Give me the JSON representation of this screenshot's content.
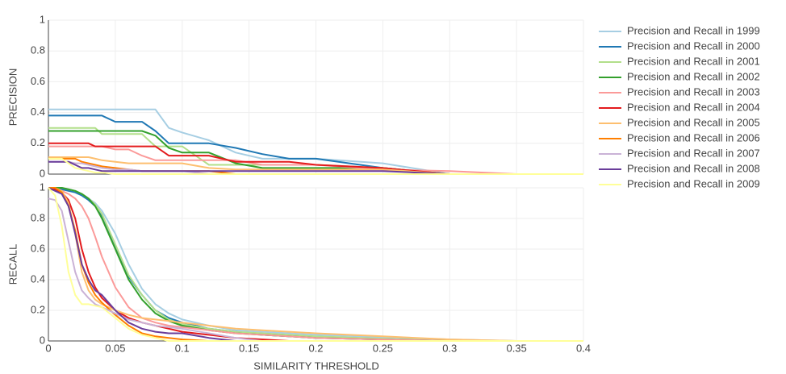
{
  "chart_data": {
    "type": "line",
    "xlabel": "SIMILARITY THRESHOLD",
    "xlim": [
      0,
      0.4
    ],
    "xticks": [
      0,
      0.05,
      0.1,
      0.15,
      0.2,
      0.25,
      0.3,
      0.35,
      0.4
    ],
    "grid": true,
    "legend": "right",
    "panels": [
      {
        "ylabel": "PRECISION",
        "ylim": [
          0,
          1
        ],
        "yticks": [
          0,
          0.2,
          0.4,
          0.6,
          0.8,
          1
        ]
      },
      {
        "ylabel": "RECALL",
        "ylim": [
          0,
          1
        ],
        "yticks": [
          0,
          0.2,
          0.4,
          0.6,
          0.8,
          1
        ]
      }
    ],
    "x": [
      0,
      0.005,
      0.01,
      0.015,
      0.02,
      0.025,
      0.03,
      0.035,
      0.04,
      0.05,
      0.06,
      0.07,
      0.08,
      0.09,
      0.1,
      0.12,
      0.14,
      0.16,
      0.18,
      0.2,
      0.25,
      0.3,
      0.35,
      0.4
    ],
    "series": [
      {
        "name": "Precision and Recall in 1999",
        "color": "#a6cee3",
        "values": [
          [
            0.42,
            0.42,
            0.42,
            0.42,
            0.42,
            0.42,
            0.42,
            0.42,
            0.42,
            0.42,
            0.42,
            0.42,
            0.42,
            0.3,
            0.27,
            0.22,
            0.14,
            0.1,
            0.1,
            0.1,
            0.07,
            0,
            0,
            0
          ],
          [
            1,
            1,
            1,
            0.99,
            0.98,
            0.96,
            0.93,
            0.9,
            0.85,
            0.7,
            0.5,
            0.34,
            0.24,
            0.18,
            0.14,
            0.1,
            0.07,
            0.06,
            0.05,
            0.04,
            0.025,
            0.01,
            0,
            0
          ]
        ]
      },
      {
        "name": "Precision and Recall in 2000",
        "color": "#1f78b4",
        "values": [
          [
            0.38,
            0.38,
            0.38,
            0.38,
            0.38,
            0.38,
            0.38,
            0.38,
            0.38,
            0.34,
            0.34,
            0.34,
            0.28,
            0.2,
            0.2,
            0.2,
            0.17,
            0.13,
            0.1,
            0.1,
            0.04,
            0,
            0,
            0
          ],
          [
            1,
            1,
            0.99,
            0.98,
            0.97,
            0.95,
            0.92,
            0.88,
            0.82,
            0.62,
            0.42,
            0.3,
            0.2,
            0.15,
            0.12,
            0.08,
            0.06,
            0.04,
            0.03,
            0.02,
            0.01,
            0,
            0,
            0
          ]
        ]
      },
      {
        "name": "Precision and Recall in 2001",
        "color": "#b2df8a",
        "values": [
          [
            0.3,
            0.3,
            0.3,
            0.3,
            0.3,
            0.3,
            0.3,
            0.3,
            0.26,
            0.26,
            0.26,
            0.26,
            0.18,
            0.18,
            0.18,
            0.06,
            0.06,
            0.06,
            0.06,
            0.06,
            0.04,
            0,
            0,
            0
          ],
          [
            1,
            1,
            1,
            0.99,
            0.98,
            0.96,
            0.93,
            0.89,
            0.83,
            0.63,
            0.43,
            0.3,
            0.2,
            0.14,
            0.11,
            0.08,
            0.06,
            0.05,
            0.04,
            0.03,
            0.015,
            0,
            0,
            0
          ]
        ]
      },
      {
        "name": "Precision and Recall in 2002",
        "color": "#33a02c",
        "values": [
          [
            0.28,
            0.28,
            0.28,
            0.28,
            0.28,
            0.28,
            0.28,
            0.28,
            0.28,
            0.28,
            0.28,
            0.28,
            0.25,
            0.17,
            0.14,
            0.14,
            0.07,
            0.04,
            0.04,
            0.04,
            0.04,
            0,
            0,
            0
          ],
          [
            1,
            1,
            1,
            0.99,
            0.98,
            0.96,
            0.93,
            0.88,
            0.8,
            0.6,
            0.4,
            0.27,
            0.18,
            0.13,
            0.1,
            0.07,
            0.05,
            0.04,
            0.03,
            0.02,
            0.01,
            0,
            0,
            0
          ]
        ]
      },
      {
        "name": "Precision and Recall in 2003",
        "color": "#fb9a99",
        "values": [
          [
            0.18,
            0.18,
            0.18,
            0.18,
            0.18,
            0.18,
            0.18,
            0.18,
            0.18,
            0.16,
            0.16,
            0.12,
            0.09,
            0.09,
            0.09,
            0.09,
            0.09,
            0.06,
            0.06,
            0.06,
            0.03,
            0.02,
            0,
            0
          ],
          [
            1,
            0.99,
            0.98,
            0.96,
            0.93,
            0.88,
            0.8,
            0.68,
            0.55,
            0.35,
            0.22,
            0.15,
            0.12,
            0.1,
            0.09,
            0.07,
            0.05,
            0.04,
            0.03,
            0.02,
            0.01,
            0,
            0,
            0
          ]
        ]
      },
      {
        "name": "Precision and Recall in 2004",
        "color": "#e31a1c",
        "values": [
          [
            0.2,
            0.2,
            0.2,
            0.2,
            0.2,
            0.2,
            0.2,
            0.18,
            0.18,
            0.18,
            0.18,
            0.18,
            0.18,
            0.12,
            0.12,
            0.12,
            0.08,
            0.08,
            0.08,
            0.06,
            0.04,
            0,
            0,
            0
          ],
          [
            1,
            0.99,
            0.97,
            0.92,
            0.8,
            0.6,
            0.45,
            0.35,
            0.28,
            0.2,
            0.15,
            0.12,
            0.1,
            0.08,
            0.06,
            0.04,
            0.02,
            0.01,
            0,
            0,
            0,
            0,
            0,
            0
          ]
        ]
      },
      {
        "name": "Precision and Recall in 2005",
        "color": "#fdbf6f",
        "values": [
          [
            0.11,
            0.11,
            0.11,
            0.11,
            0.11,
            0.11,
            0.11,
            0.1,
            0.09,
            0.08,
            0.07,
            0.07,
            0.07,
            0.07,
            0.07,
            0.04,
            0.03,
            0.03,
            0.03,
            0.03,
            0.03,
            0,
            0,
            0
          ],
          [
            1,
            1,
            0.98,
            0.9,
            0.7,
            0.45,
            0.33,
            0.27,
            0.24,
            0.2,
            0.17,
            0.15,
            0.14,
            0.13,
            0.12,
            0.1,
            0.08,
            0.07,
            0.06,
            0.05,
            0.03,
            0.01,
            0,
            0
          ]
        ]
      },
      {
        "name": "Precision and Recall in 2006",
        "color": "#ff7f00",
        "values": [
          [
            0.1,
            0.1,
            0.1,
            0.1,
            0.1,
            0.08,
            0.07,
            0.06,
            0.05,
            0.04,
            0.03,
            0.02,
            0.02,
            0.02,
            0.02,
            0.02,
            0,
            0,
            0,
            0,
            0,
            0,
            0,
            0
          ],
          [
            1,
            1,
            0.97,
            0.88,
            0.72,
            0.5,
            0.38,
            0.3,
            0.25,
            0.17,
            0.1,
            0.05,
            0.03,
            0.02,
            0.01,
            0,
            0,
            0,
            0,
            0,
            0,
            0,
            0,
            0
          ]
        ]
      },
      {
        "name": "Precision and Recall in 2007",
        "color": "#cab2d6",
        "values": [
          [
            0.08,
            0.08,
            0.08,
            0.08,
            0.07,
            0.07,
            0.06,
            0.05,
            0.04,
            0.03,
            0.03,
            0.02,
            0.02,
            0.02,
            0.02,
            0,
            0,
            0,
            0,
            0,
            0,
            0,
            0,
            0
          ],
          [
            0.93,
            0.92,
            0.85,
            0.65,
            0.45,
            0.33,
            0.28,
            0.24,
            0.22,
            0.18,
            0.14,
            0.12,
            0.1,
            0.09,
            0.08,
            0.05,
            0.02,
            0,
            0,
            0,
            0,
            0,
            0,
            0
          ]
        ]
      },
      {
        "name": "Precision and Recall in 2008",
        "color": "#6a3d9a",
        "values": [
          [
            0.08,
            0.08,
            0.08,
            0.08,
            0.06,
            0.04,
            0.04,
            0.03,
            0.02,
            0.02,
            0.02,
            0.02,
            0.02,
            0.02,
            0.02,
            0.02,
            0.02,
            0.02,
            0.02,
            0.02,
            0.02,
            0,
            0,
            0
          ],
          [
            1,
            0.98,
            0.96,
            0.88,
            0.7,
            0.5,
            0.4,
            0.33,
            0.3,
            0.2,
            0.12,
            0.08,
            0.06,
            0.05,
            0.05,
            0.02,
            0,
            0,
            0,
            0,
            0,
            0,
            0,
            0
          ]
        ]
      },
      {
        "name": "Precision and Recall in 2009",
        "color": "#ffff99",
        "values": [
          [
            0.1,
            0.1,
            0.1,
            0.07,
            0.04,
            0.03,
            0.02,
            0.01,
            0.01,
            0,
            0,
            0,
            0,
            0,
            0,
            0,
            0,
            0,
            0,
            0,
            0,
            0,
            0,
            0
          ],
          [
            1,
            0.95,
            0.75,
            0.45,
            0.3,
            0.24,
            0.24,
            0.23,
            0.22,
            0.15,
            0.08,
            0.04,
            0.02,
            0,
            0,
            0,
            0,
            0,
            0,
            0,
            0,
            0,
            0,
            0
          ]
        ]
      }
    ]
  }
}
